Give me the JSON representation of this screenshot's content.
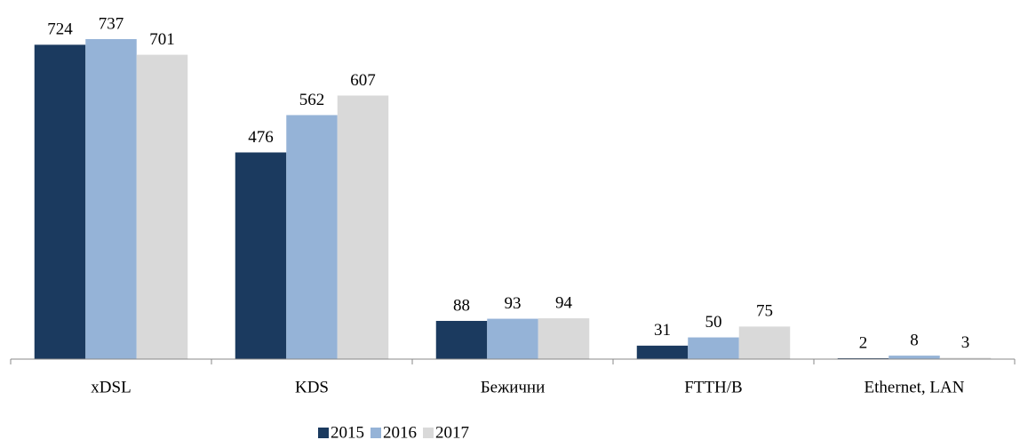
{
  "chart_data": {
    "type": "bar",
    "categories": [
      "xDSL",
      "KDS",
      "Бежични",
      "FTTH/B",
      "Ethernet, LAN"
    ],
    "series": [
      {
        "name": "2015",
        "color": "#1b3a5f",
        "values": [
          724,
          476,
          88,
          31,
          2
        ]
      },
      {
        "name": "2016",
        "color": "#95b3d7",
        "values": [
          737,
          562,
          93,
          50,
          8
        ]
      },
      {
        "name": "2017",
        "color": "#d9d9d9",
        "values": [
          701,
          607,
          94,
          75,
          3
        ]
      }
    ],
    "legend": "bottom"
  }
}
